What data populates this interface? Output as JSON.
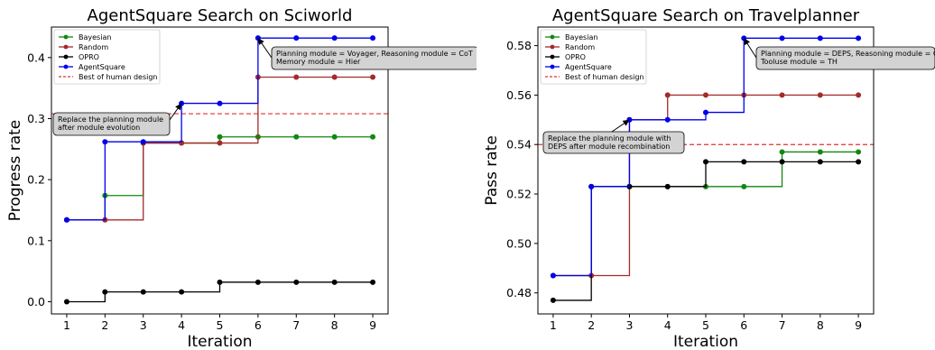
{
  "chart_data": [
    {
      "type": "line",
      "step": true,
      "title": "AgentSquare Search on Sciworld",
      "xlabel": "Iteration",
      "ylabel": "Progress rate",
      "xlim": [
        0.6,
        9.4
      ],
      "ylim": [
        -0.02,
        0.45
      ],
      "xticks": [
        1,
        2,
        3,
        4,
        5,
        6,
        7,
        8,
        9
      ],
      "yticks": [
        0.0,
        0.1,
        0.2,
        0.3,
        0.4
      ],
      "ytick_labels": [
        "0.0",
        "0.1",
        "0.2",
        "0.3",
        "0.4"
      ],
      "x": [
        1,
        2,
        3,
        4,
        5,
        6,
        7,
        8,
        9
      ],
      "series": [
        {
          "name": "Bayesian",
          "color": "#118811",
          "values": [
            0.134,
            0.174,
            0.26,
            0.26,
            0.27,
            0.27,
            0.27,
            0.27,
            0.27
          ]
        },
        {
          "name": "Random",
          "color": "#a52a2a",
          "values": [
            0.134,
            0.134,
            0.26,
            0.26,
            0.26,
            0.368,
            0.368,
            0.368,
            0.368
          ]
        },
        {
          "name": "OPRO",
          "color": "#000000",
          "values": [
            0.0,
            0.016,
            0.016,
            0.016,
            0.032,
            0.032,
            0.032,
            0.032,
            0.032
          ]
        },
        {
          "name": "AgentSquare",
          "color": "#0000ee",
          "values": [
            0.134,
            0.262,
            0.262,
            0.325,
            0.325,
            0.432,
            0.432,
            0.432,
            0.432
          ]
        }
      ],
      "reference_line": {
        "name": "Best of human design",
        "value": 0.308,
        "color": "#e03030"
      },
      "legend_placement": "top-left",
      "grid": false,
      "annotations": [
        {
          "lines": [
            "Replace the planning module",
            "after module evolution"
          ],
          "target": [
            4,
            0.325
          ]
        },
        {
          "lines": [
            "Planning module = Voyager, Reasoning module = CoT",
            "Memory module = Hier"
          ],
          "target": [
            6,
            0.432
          ]
        }
      ]
    },
    {
      "type": "line",
      "step": true,
      "title": "AgentSquare Search on Travelplanner",
      "xlabel": "Iteration",
      "ylabel": "Pass rate",
      "xlim": [
        0.6,
        9.4
      ],
      "ylim": [
        0.4715,
        0.5875
      ],
      "xticks": [
        1,
        2,
        3,
        4,
        5,
        6,
        7,
        8,
        9
      ],
      "yticks": [
        0.48,
        0.5,
        0.52,
        0.54,
        0.56,
        0.58
      ],
      "ytick_labels": [
        "0.48",
        "0.50",
        "0.52",
        "0.54",
        "0.56",
        "0.58"
      ],
      "x": [
        1,
        2,
        3,
        4,
        5,
        6,
        7,
        8,
        9
      ],
      "series": [
        {
          "name": "Bayesian",
          "color": "#118811",
          "values": [
            0.487,
            0.523,
            0.523,
            0.523,
            0.523,
            0.523,
            0.537,
            0.537,
            0.537
          ]
        },
        {
          "name": "Random",
          "color": "#a52a2a",
          "values": [
            0.487,
            0.487,
            0.55,
            0.56,
            0.56,
            0.56,
            0.56,
            0.56,
            0.56
          ]
        },
        {
          "name": "OPRO",
          "color": "#000000",
          "values": [
            0.477,
            0.523,
            0.523,
            0.523,
            0.533,
            0.533,
            0.533,
            0.533,
            0.533
          ]
        },
        {
          "name": "AgentSquare",
          "color": "#0000ee",
          "values": [
            0.487,
            0.523,
            0.55,
            0.55,
            0.553,
            0.583,
            0.583,
            0.583,
            0.583
          ]
        }
      ],
      "reference_line": {
        "name": "Best of human design",
        "value": 0.54,
        "color": "#e03030"
      },
      "legend_placement": "top-left",
      "grid": false,
      "annotations": [
        {
          "lines": [
            "Replace the planning module with",
            "DEPS after module recombination"
          ],
          "target": [
            3,
            0.55
          ]
        },
        {
          "lines": [
            "Planning module = DEPS, Reasoning module = Co",
            "Tooluse module = TH"
          ],
          "target": [
            6,
            0.583
          ]
        }
      ]
    }
  ]
}
